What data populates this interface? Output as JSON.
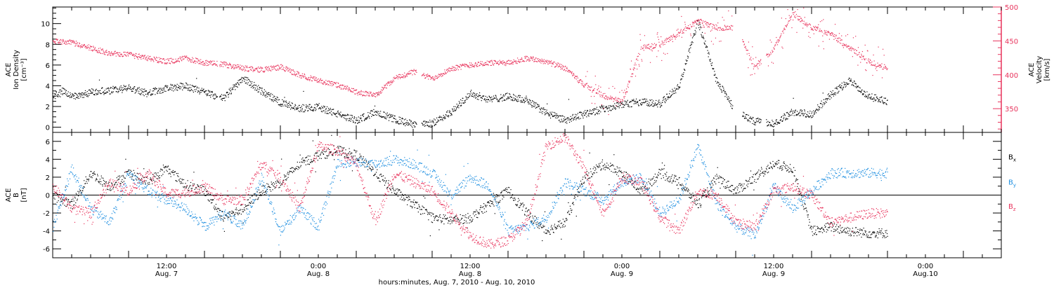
{
  "chart_data": [
    {
      "type": "scatter",
      "panel": "top",
      "ylabel_left": [
        "ACE",
        "Ion Density",
        "[cm⁻³]"
      ],
      "ylabel_right": [
        "ACE",
        "Velocity",
        "[km/s]"
      ],
      "ylim_left": [
        -0.5,
        11.6
      ],
      "yticks_left": [
        "0",
        "2",
        "4",
        "6",
        "8",
        "10"
      ],
      "ylim_right": [
        315,
        500
      ],
      "yticks_right": [
        "350",
        "400",
        "450",
        "500"
      ],
      "series": [],
      "density_keypoints": [
        [
          0,
          3.0
        ],
        [
          1.5,
          3.5
        ],
        [
          3,
          3.0
        ],
        [
          6,
          3.4
        ],
        [
          9,
          3.6
        ],
        [
          12,
          3.8
        ],
        [
          15,
          3.3
        ],
        [
          18,
          3.8
        ],
        [
          21,
          4.0
        ],
        [
          24,
          3.4
        ],
        [
          27,
          2.8
        ],
        [
          30,
          4.8
        ],
        [
          33,
          3.5
        ],
        [
          36,
          2.4
        ],
        [
          39,
          1.8
        ],
        [
          42,
          2.0
        ],
        [
          45,
          1.3
        ],
        [
          48,
          0.7
        ],
        [
          51,
          1.5
        ],
        [
          54,
          0.8
        ],
        [
          57,
          0.3
        ],
        [
          60,
          0.4
        ],
        [
          63,
          1.5
        ],
        [
          66,
          3.3
        ],
        [
          69,
          2.7
        ],
        [
          72,
          3.0
        ],
        [
          75,
          2.6
        ],
        [
          78,
          1.4
        ],
        [
          81,
          0.7
        ],
        [
          84,
          1.3
        ],
        [
          87,
          1.8
        ],
        [
          90,
          2.2
        ],
        [
          93,
          2.5
        ],
        [
          96,
          2.3
        ],
        [
          99,
          4.0
        ],
        [
          102,
          10.2
        ],
        [
          105,
          4.5
        ],
        [
          108,
          1.5
        ],
        [
          111,
          0.6
        ],
        [
          114,
          0.4
        ],
        [
          117,
          1.5
        ],
        [
          120,
          1.3
        ],
        [
          123,
          3.2
        ],
        [
          126,
          4.5
        ],
        [
          129,
          3.0
        ],
        [
          132,
          2.5
        ]
      ],
      "velocity_keypoints": [
        [
          0,
          450
        ],
        [
          3,
          448
        ],
        [
          6,
          440
        ],
        [
          9,
          432
        ],
        [
          12,
          430
        ],
        [
          15,
          425
        ],
        [
          18,
          420
        ],
        [
          21,
          425
        ],
        [
          24,
          418
        ],
        [
          27,
          416
        ],
        [
          30,
          410
        ],
        [
          33,
          408
        ],
        [
          36,
          412
        ],
        [
          39,
          400
        ],
        [
          42,
          392
        ],
        [
          45,
          385
        ],
        [
          48,
          375
        ],
        [
          51,
          370
        ],
        [
          54,
          395
        ],
        [
          57,
          405
        ],
        [
          60,
          395
        ],
        [
          63,
          410
        ],
        [
          66,
          415
        ],
        [
          69,
          418
        ],
        [
          72,
          418
        ],
        [
          75,
          425
        ],
        [
          78,
          420
        ],
        [
          81,
          410
        ],
        [
          84,
          385
        ],
        [
          87,
          370
        ],
        [
          90,
          360
        ],
        [
          93,
          440
        ],
        [
          96,
          445
        ],
        [
          99,
          462
        ],
        [
          102,
          480
        ],
        [
          105,
          470
        ],
        [
          108,
          470
        ],
        [
          111,
          410
        ],
        [
          114,
          440
        ],
        [
          117,
          490
        ],
        [
          120,
          470
        ],
        [
          123,
          460
        ],
        [
          126,
          440
        ],
        [
          129,
          420
        ],
        [
          132,
          410
        ]
      ]
    },
    {
      "type": "scatter",
      "panel": "bottom",
      "ylabel_left": [
        "ACE",
        "B",
        "[nT]"
      ],
      "ylim": [
        -7,
        7
      ],
      "yticks": [
        "-6",
        "-4",
        "-2",
        "0",
        "2",
        "4",
        "6"
      ],
      "xlabel": "hours:minutes, Aug.  7, 2010 - Aug. 10, 2010",
      "xticks": [
        {
          "time": "12:00",
          "date": "Aug. 7"
        },
        {
          "time": "0:00",
          "date": "Aug. 8"
        },
        {
          "time": "12:00",
          "date": "Aug. 8"
        },
        {
          "time": "0:00",
          "date": "Aug. 9"
        },
        {
          "time": "12:00",
          "date": "Aug. 9"
        },
        {
          "time": "0:00",
          "date": "Aug.10"
        }
      ],
      "series": [
        {
          "name": "Bx",
          "color": "#000000",
          "keypoints": [
            [
              0,
              0.0
            ],
            [
              3,
              -1.0
            ],
            [
              6,
              2.5
            ],
            [
              9,
              1.0
            ],
            [
              12,
              2.5
            ],
            [
              15,
              1.5
            ],
            [
              18,
              3.0
            ],
            [
              21,
              1.2
            ],
            [
              24,
              0.5
            ],
            [
              27,
              -2.5
            ],
            [
              30,
              -1.5
            ],
            [
              33,
              0.5
            ],
            [
              36,
              1.5
            ],
            [
              39,
              3.5
            ],
            [
              42,
              4.5
            ],
            [
              45,
              5.0
            ],
            [
              48,
              4.5
            ],
            [
              51,
              2.5
            ],
            [
              54,
              0.5
            ],
            [
              57,
              -1.0
            ],
            [
              60,
              -2.5
            ],
            [
              63,
              -2.8
            ],
            [
              66,
              -2.5
            ],
            [
              69,
              -1.0
            ],
            [
              72,
              0.5
            ],
            [
              75,
              -2.0
            ],
            [
              78,
              -4.0
            ],
            [
              81,
              -3.0
            ],
            [
              84,
              2.0
            ],
            [
              87,
              3.5
            ],
            [
              90,
              2.5
            ],
            [
              93,
              0.5
            ],
            [
              96,
              2.5
            ],
            [
              99,
              1.5
            ],
            [
              102,
              -1.0
            ],
            [
              105,
              2.0
            ],
            [
              108,
              0.5
            ],
            [
              111,
              2.0
            ],
            [
              114,
              3.5
            ],
            [
              117,
              3.0
            ],
            [
              120,
              -4.0
            ],
            [
              123,
              -3.5
            ],
            [
              126,
              -4.0
            ],
            [
              129,
              -4.2
            ]
          ]
        },
        {
          "name": "By",
          "color": "#1f8fe0",
          "keypoints": [
            [
              0,
              -3.5
            ],
            [
              3,
              3.0
            ],
            [
              6,
              -1.5
            ],
            [
              9,
              -3.0
            ],
            [
              12,
              2.5
            ],
            [
              15,
              0.5
            ],
            [
              18,
              -0.5
            ],
            [
              21,
              -1.5
            ],
            [
              24,
              -3.5
            ],
            [
              27,
              -2.0
            ],
            [
              30,
              -3.5
            ],
            [
              33,
              2.0
            ],
            [
              36,
              -4.0
            ],
            [
              39,
              -1.5
            ],
            [
              42,
              -3.5
            ],
            [
              45,
              3.5
            ],
            [
              48,
              3.8
            ],
            [
              51,
              3.5
            ],
            [
              54,
              4.0
            ],
            [
              57,
              3.5
            ],
            [
              60,
              2.5
            ],
            [
              63,
              0.0
            ],
            [
              66,
              2.0
            ],
            [
              69,
              1.0
            ],
            [
              72,
              -4.0
            ],
            [
              75,
              -3.5
            ],
            [
              78,
              -2.5
            ],
            [
              81,
              1.5
            ],
            [
              84,
              0.5
            ],
            [
              87,
              -0.5
            ],
            [
              90,
              1.5
            ],
            [
              93,
              2.0
            ],
            [
              96,
              -2.0
            ],
            [
              99,
              -0.5
            ],
            [
              102,
              5.5
            ],
            [
              105,
              -1.0
            ],
            [
              108,
              -3.5
            ],
            [
              111,
              -4.5
            ],
            [
              114,
              1.0
            ],
            [
              117,
              -1.5
            ],
            [
              120,
              0.5
            ],
            [
              123,
              2.5
            ],
            [
              126,
              2.5
            ],
            [
              129,
              2.5
            ]
          ]
        },
        {
          "name": "Bz",
          "color": "#e8335c",
          "keypoints": [
            [
              0,
              1.0
            ],
            [
              3,
              -1.5
            ],
            [
              6,
              -2.0
            ],
            [
              9,
              1.5
            ],
            [
              12,
              0.5
            ],
            [
              15,
              2.5
            ],
            [
              18,
              0.2
            ],
            [
              21,
              0.3
            ],
            [
              24,
              1.0
            ],
            [
              27,
              -0.5
            ],
            [
              30,
              -0.5
            ],
            [
              33,
              3.5
            ],
            [
              36,
              2.0
            ],
            [
              39,
              -1.5
            ],
            [
              42,
              5.5
            ],
            [
              45,
              5.0
            ],
            [
              48,
              3.5
            ],
            [
              51,
              -3.0
            ],
            [
              54,
              2.5
            ],
            [
              57,
              1.5
            ],
            [
              60,
              0.5
            ],
            [
              63,
              -2.0
            ],
            [
              66,
              -4.5
            ],
            [
              69,
              -5.5
            ],
            [
              72,
              -5.0
            ],
            [
              75,
              -3.0
            ],
            [
              78,
              5.5
            ],
            [
              81,
              6.5
            ],
            [
              84,
              3.0
            ],
            [
              87,
              -2.0
            ],
            [
              90,
              2.0
            ],
            [
              93,
              1.5
            ],
            [
              96,
              -2.5
            ],
            [
              99,
              -4.0
            ],
            [
              102,
              0.5
            ],
            [
              105,
              0.0
            ],
            [
              108,
              -3.0
            ],
            [
              111,
              -3.5
            ],
            [
              114,
              0.5
            ],
            [
              117,
              1.0
            ],
            [
              120,
              0.0
            ],
            [
              123,
              -3.0
            ],
            [
              126,
              -2.5
            ],
            [
              129,
              -2.0
            ]
          ]
        }
      ]
    }
  ],
  "colors": {
    "density": "#000000",
    "velocity": "#e8335c",
    "bx": "#000000",
    "by": "#1f8fe0",
    "bz": "#e8335c",
    "right_axis": "#e8335c"
  }
}
